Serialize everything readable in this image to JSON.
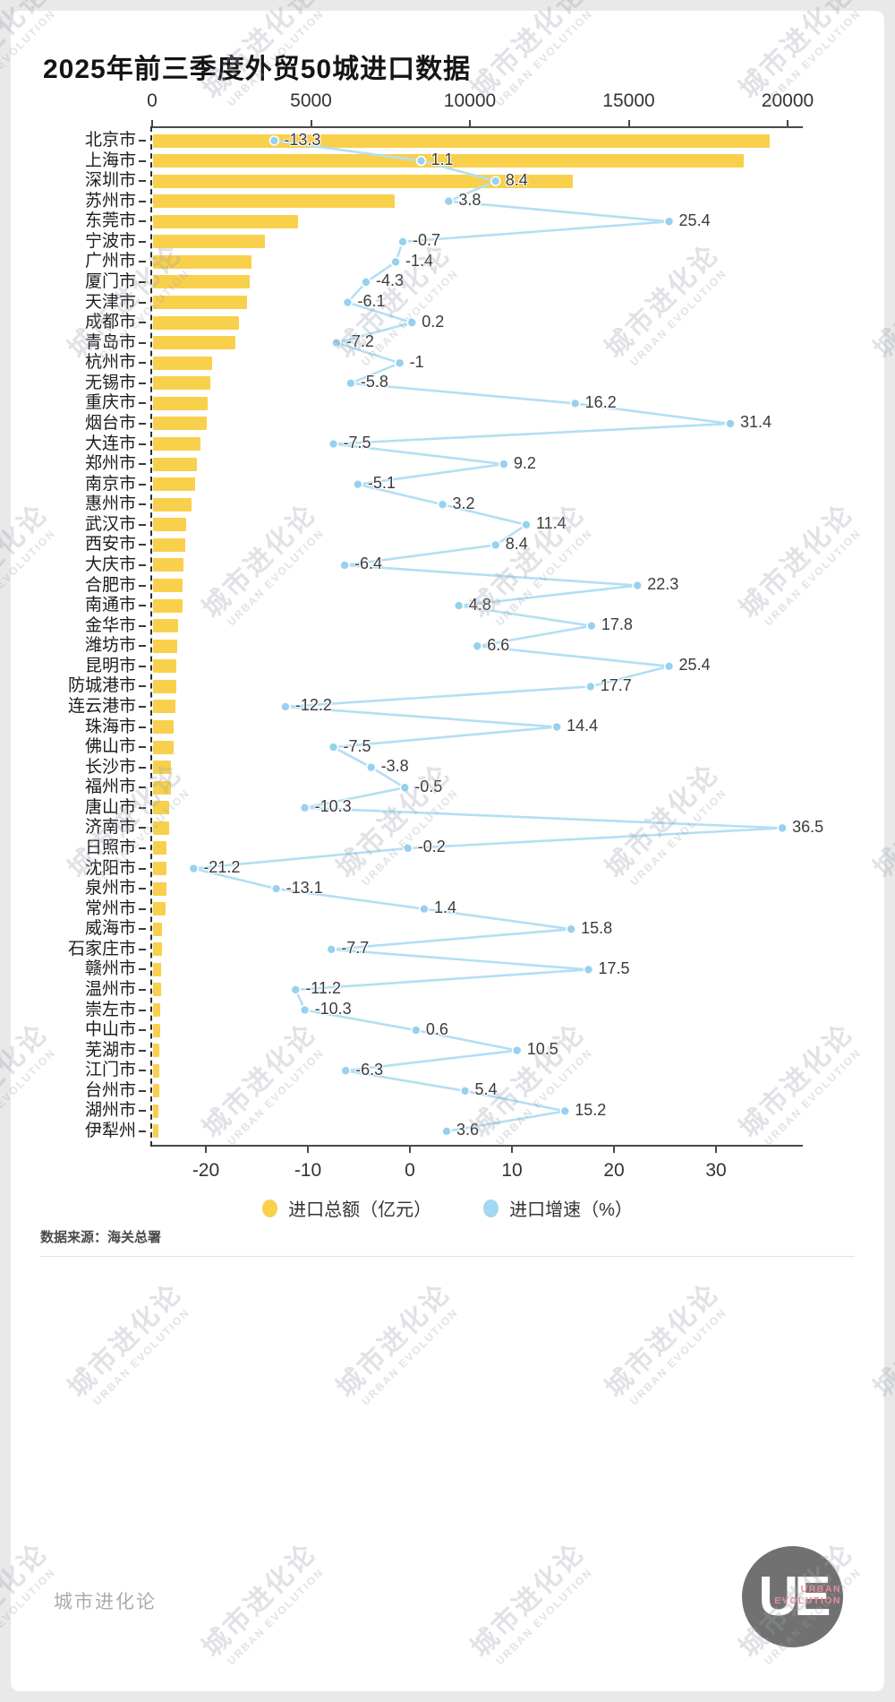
{
  "page": {
    "title": "2025年前三季度外贸50城进口数据",
    "source": "数据来源：海关总署",
    "footer_brand": "城市进化论",
    "watermark": {
      "zh": "城市进化论",
      "en": "URBAN EVOLUTION"
    },
    "logo": {
      "monogram": "UE",
      "line1": "URBAN",
      "line2": "EVOLUTION"
    }
  },
  "legend": {
    "items": [
      {
        "label": "进口总额（亿元）",
        "color": "#f9d04b"
      },
      {
        "label": "进口增速（%）",
        "color": "#a3d7f2"
      }
    ]
  },
  "chart_data": {
    "type": "bar",
    "orientation": "horizontal",
    "title": "2025年前三季度外贸50城进口数据",
    "categories": [
      "北京市",
      "上海市",
      "深圳市",
      "苏州市",
      "东莞市",
      "宁波市",
      "广州市",
      "厦门市",
      "天津市",
      "成都市",
      "青岛市",
      "杭州市",
      "无锡市",
      "重庆市",
      "烟台市",
      "大连市",
      "郑州市",
      "南京市",
      "惠州市",
      "武汉市",
      "西安市",
      "大庆市",
      "合肥市",
      "南通市",
      "金华市",
      "潍坊市",
      "昆明市",
      "防城港市",
      "连云港市",
      "珠海市",
      "佛山市",
      "长沙市",
      "福州市",
      "唐山市",
      "济南市",
      "日照市",
      "沈阳市",
      "泉州市",
      "常州市",
      "威海市",
      "石家庄市",
      "赣州市",
      "温州市",
      "崇左市",
      "中山市",
      "芜湖市",
      "江门市",
      "台州市",
      "湖州市",
      "伊犁州"
    ],
    "series": [
      {
        "name": "进口总额（亿元）",
        "type": "bar",
        "color": "#f9d04b",
        "values": [
          19400,
          18600,
          13200,
          7600,
          4550,
          3530,
          3100,
          3050,
          2950,
          2700,
          2600,
          1850,
          1800,
          1720,
          1700,
          1500,
          1370,
          1320,
          1220,
          1030,
          1000,
          960,
          940,
          930,
          800,
          760,
          740,
          720,
          700,
          660,
          650,
          570,
          560,
          520,
          510,
          430,
          420,
          410,
          400,
          290,
          280,
          250,
          240,
          230,
          220,
          210,
          200,
          190,
          180,
          170
        ]
      },
      {
        "name": "进口增速（%）",
        "type": "line",
        "color": "#a3d7f2",
        "values": [
          -13.3,
          1.1,
          8.4,
          3.8,
          25.4,
          -0.7,
          -1.4,
          -4.3,
          -6.1,
          0.2,
          -7.2,
          -1,
          -5.8,
          16.2,
          31.4,
          -7.5,
          9.2,
          -5.1,
          3.2,
          11.4,
          8.4,
          -6.4,
          22.3,
          4.8,
          17.8,
          6.6,
          25.4,
          17.7,
          -12.2,
          14.4,
          -7.5,
          -3.8,
          -0.5,
          -10.3,
          36.5,
          -0.2,
          -21.2,
          -13.1,
          1.4,
          15.8,
          -7.7,
          17.5,
          -11.2,
          -10.3,
          0.6,
          10.5,
          -6.3,
          5.4,
          15.2,
          3.6
        ]
      }
    ],
    "top_axis": {
      "series": "进口总额（亿元）",
      "ticks": [
        0,
        5000,
        10000,
        15000,
        20000
      ],
      "range": [
        0,
        20000
      ]
    },
    "bottom_axis": {
      "series": "进口增速（%）",
      "ticks": [
        -20,
        -10,
        0,
        10,
        20,
        30
      ],
      "range": [
        -25.3,
        38.3
      ]
    },
    "grid": false,
    "legend_position": "bottom"
  }
}
